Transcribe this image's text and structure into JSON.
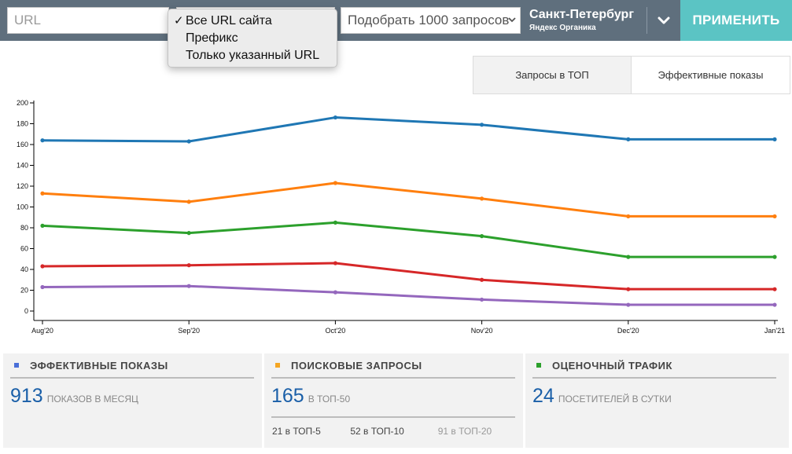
{
  "toolbar": {
    "url_placeholder": "URL",
    "scope_options": [
      {
        "label": "Все URL сайта",
        "checked": true
      },
      {
        "label": "Префикс",
        "checked": false
      },
      {
        "label": "Только указанный URL",
        "checked": false
      }
    ],
    "query_select": "Подобрать 1000 запросов",
    "region_city": "Санкт-Петербург",
    "region_engine": "Яндекс Органика",
    "apply_label": "ПРИМЕНИТЬ"
  },
  "tabs": [
    {
      "label": "Запросы в ТОП",
      "active": true
    },
    {
      "label": "Эффективные показы",
      "active": false
    }
  ],
  "chart_data": {
    "type": "line",
    "x": [
      "Aug'20",
      "Sep'20",
      "Oct'20",
      "Nov'20",
      "Dec'20",
      "Jan'21"
    ],
    "ylim": [
      0,
      200
    ],
    "yticks": [
      0,
      20,
      40,
      60,
      80,
      100,
      120,
      140,
      160,
      180,
      200
    ],
    "grid": false,
    "series": [
      {
        "color": "#1f77b4",
        "values": [
          164,
          163,
          186,
          179,
          165,
          165
        ]
      },
      {
        "color": "#ff7f0e",
        "values": [
          113,
          105,
          123,
          108,
          91,
          91
        ]
      },
      {
        "color": "#2ca02c",
        "values": [
          82,
          75,
          85,
          72,
          52,
          52
        ]
      },
      {
        "color": "#d62728",
        "values": [
          43,
          44,
          46,
          30,
          21,
          21
        ]
      },
      {
        "color": "#9467bd",
        "values": [
          23,
          24,
          18,
          11,
          6,
          6
        ]
      }
    ]
  },
  "stats": {
    "impressions": {
      "title": "ЭФФЕКТИВНЫЕ ПОКАЗЫ",
      "color": "#4a6fd8",
      "value": "913",
      "label": "ПОКАЗОВ В МЕСЯЦ"
    },
    "queries": {
      "title": "ПОИСКОВЫЕ ЗАПРОСЫ",
      "color": "#f5a623",
      "value": "165",
      "label": "В ТОП-50",
      "top5": "21 в ТОП-5",
      "top10": "52 в ТОП-10",
      "top20": "91 в ТОП-20"
    },
    "traffic": {
      "title": "ОЦЕНОЧНЫЙ ТРАФИК",
      "color": "#2ca02c",
      "value": "24",
      "label": "ПОСЕТИТЕЛЕЙ В СУТКИ"
    }
  }
}
